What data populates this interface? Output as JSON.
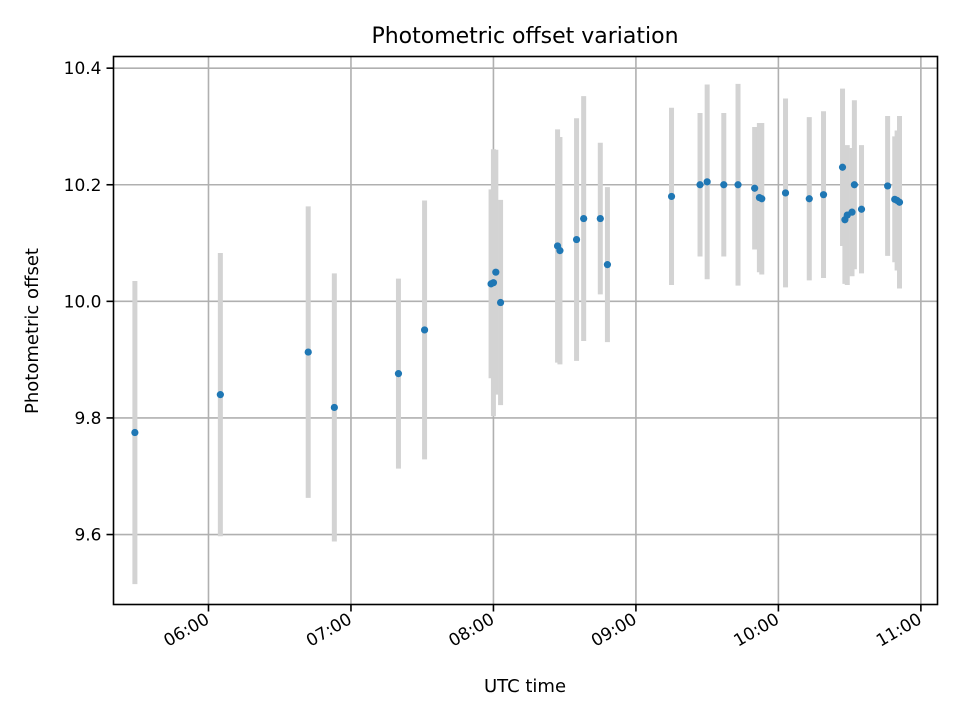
{
  "chart_data": {
    "type": "scatter",
    "title": "Photometric offset variation",
    "xlabel": "UTC time",
    "ylabel": "Photometric offset",
    "x_tick_labels": [
      "06:00",
      "07:00",
      "08:00",
      "09:00",
      "10:00",
      "11:00"
    ],
    "x_tick_values": [
      "06:00",
      "07:00",
      "08:00",
      "09:00",
      "10:00",
      "11:00"
    ],
    "xlim": [
      "05:20",
      "11:07"
    ],
    "y_tick_values": [
      9.6,
      9.8,
      10.0,
      10.2,
      10.4
    ],
    "y_tick_labels": [
      "9.6",
      "9.8",
      "10.0",
      "10.2",
      "10.4"
    ],
    "ylim": [
      9.48,
      10.42
    ],
    "grid": true,
    "marker_color": "#1f77b4",
    "errorbar_color": "#d3d3d3",
    "points": [
      {
        "x": "05:29",
        "y": 9.775,
        "yerr": 0.26
      },
      {
        "x": "06:05",
        "y": 9.84,
        "yerr": 0.243
      },
      {
        "x": "06:42",
        "y": 9.913,
        "yerr": 0.25
      },
      {
        "x": "06:53",
        "y": 9.818,
        "yerr": 0.23
      },
      {
        "x": "07:20",
        "y": 9.876,
        "yerr": 0.163
      },
      {
        "x": "07:31",
        "y": 9.951,
        "yerr": 0.222
      },
      {
        "x": "07:59",
        "y": 10.03,
        "yerr": 0.162
      },
      {
        "x": "08:00",
        "y": 10.032,
        "yerr": 0.229
      },
      {
        "x": "08:01",
        "y": 10.05,
        "yerr": 0.21
      },
      {
        "x": "08:03",
        "y": 9.998,
        "yerr": 0.176
      },
      {
        "x": "08:27",
        "y": 10.095,
        "yerr": 0.2
      },
      {
        "x": "08:28",
        "y": 10.087,
        "yerr": 0.195
      },
      {
        "x": "08:35",
        "y": 10.106,
        "yerr": 0.208
      },
      {
        "x": "08:38",
        "y": 10.142,
        "yerr": 0.21
      },
      {
        "x": "08:45",
        "y": 10.142,
        "yerr": 0.13
      },
      {
        "x": "08:48",
        "y": 10.063,
        "yerr": 0.133
      },
      {
        "x": "09:15",
        "y": 10.18,
        "yerr": 0.152
      },
      {
        "x": "09:27",
        "y": 10.2,
        "yerr": 0.123
      },
      {
        "x": "09:30",
        "y": 10.205,
        "yerr": 0.167
      },
      {
        "x": "09:37",
        "y": 10.2,
        "yerr": 0.123
      },
      {
        "x": "09:43",
        "y": 10.2,
        "yerr": 0.173
      },
      {
        "x": "09:50",
        "y": 10.194,
        "yerr": 0.105
      },
      {
        "x": "09:52",
        "y": 10.178,
        "yerr": 0.128
      },
      {
        "x": "09:53",
        "y": 10.176,
        "yerr": 0.13
      },
      {
        "x": "10:03",
        "y": 10.186,
        "yerr": 0.162
      },
      {
        "x": "10:13",
        "y": 10.176,
        "yerr": 0.14
      },
      {
        "x": "10:19",
        "y": 10.183,
        "yerr": 0.143
      },
      {
        "x": "10:27",
        "y": 10.23,
        "yerr": 0.135
      },
      {
        "x": "10:28",
        "y": 10.14,
        "yerr": 0.11
      },
      {
        "x": "10:29",
        "y": 10.148,
        "yerr": 0.12
      },
      {
        "x": "10:31",
        "y": 10.153,
        "yerr": 0.11
      },
      {
        "x": "10:32",
        "y": 10.2,
        "yerr": 0.145
      },
      {
        "x": "10:35",
        "y": 10.158,
        "yerr": 0.11
      },
      {
        "x": "10:46",
        "y": 10.198,
        "yerr": 0.12
      },
      {
        "x": "10:49",
        "y": 10.175,
        "yerr": 0.108
      },
      {
        "x": "10:50",
        "y": 10.173,
        "yerr": 0.12
      },
      {
        "x": "10:51",
        "y": 10.17,
        "yerr": 0.148
      }
    ]
  }
}
